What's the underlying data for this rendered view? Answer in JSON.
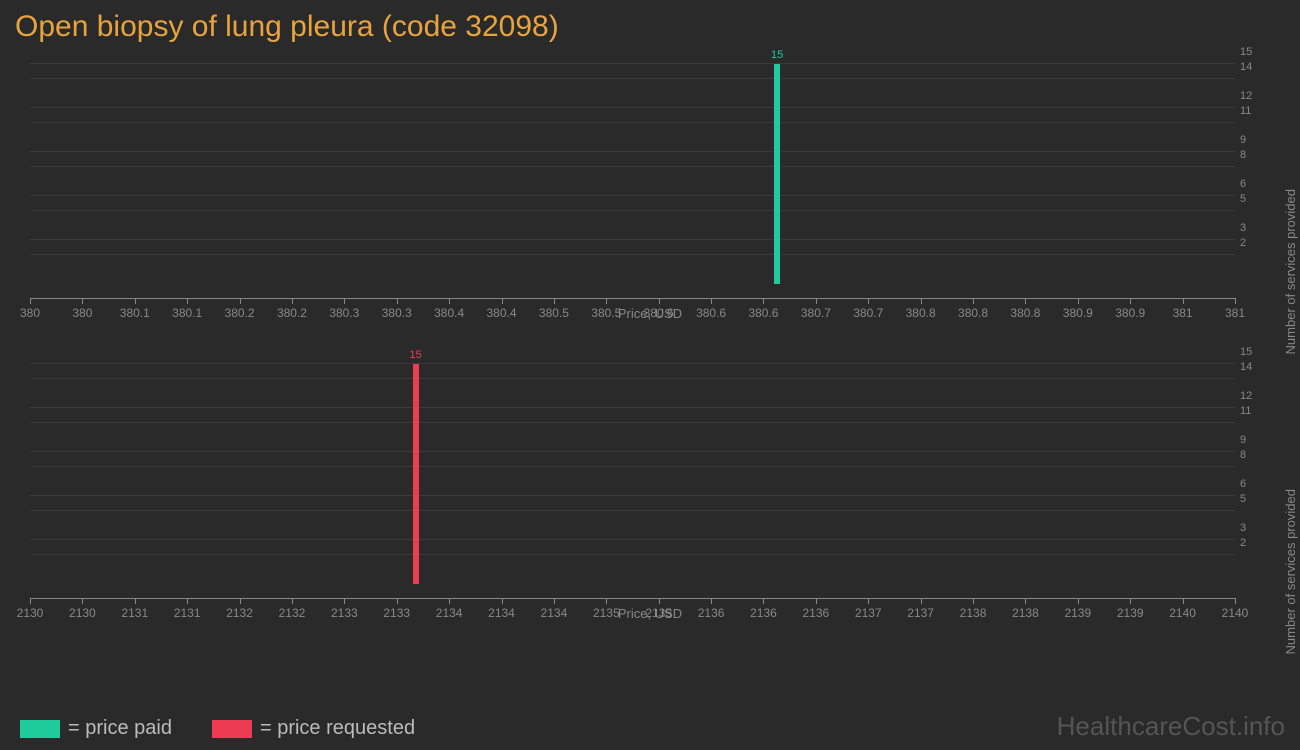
{
  "title": "Open biopsy of lung pleura (code 32098)",
  "background_color": "#2a2a2a",
  "grid_color": "#3a3a3a",
  "axis_color": "#888888",
  "text_color": "#888888",
  "title_color": "#e8a33d",
  "chart1": {
    "type": "bar",
    "bar_color": "#1fcb9a",
    "bar_value": 15,
    "bar_label": "15",
    "bar_x_position_pct": 62,
    "x_label": "Price, USD",
    "y_label": "Number of services provided",
    "x_ticks": [
      "380",
      "380",
      "380.1",
      "380.1",
      "380.2",
      "380.2",
      "380.3",
      "380.3",
      "380.4",
      "380.4",
      "380.5",
      "380.5",
      "380.6",
      "380.6",
      "380.6",
      "380.7",
      "380.7",
      "380.8",
      "380.8",
      "380.8",
      "380.9",
      "380.9",
      "381",
      "381"
    ],
    "y_ticks": [
      "2",
      "3",
      "5",
      "6",
      "8",
      "9",
      "11",
      "12",
      "14",
      "15"
    ],
    "y_max": 15
  },
  "chart2": {
    "type": "bar",
    "bar_color": "#ed3b53",
    "bar_value": 15,
    "bar_label": "15",
    "bar_x_position_pct": 32,
    "x_label": "Price, USD",
    "y_label": "Number of services provided",
    "x_ticks": [
      "2130",
      "2130",
      "2131",
      "2131",
      "2132",
      "2132",
      "2133",
      "2133",
      "2134",
      "2134",
      "2134",
      "2135",
      "2135",
      "2136",
      "2136",
      "2136",
      "2137",
      "2137",
      "2138",
      "2138",
      "2139",
      "2139",
      "2140",
      "2140"
    ],
    "y_ticks": [
      "2",
      "3",
      "5",
      "6",
      "8",
      "9",
      "11",
      "12",
      "14",
      "15"
    ],
    "y_max": 15
  },
  "legend": {
    "paid_color": "#1fcb9a",
    "paid_label": "= price paid",
    "requested_color": "#ed3b53",
    "requested_label": "= price requested"
  },
  "watermark": "HealthcareCost.info"
}
